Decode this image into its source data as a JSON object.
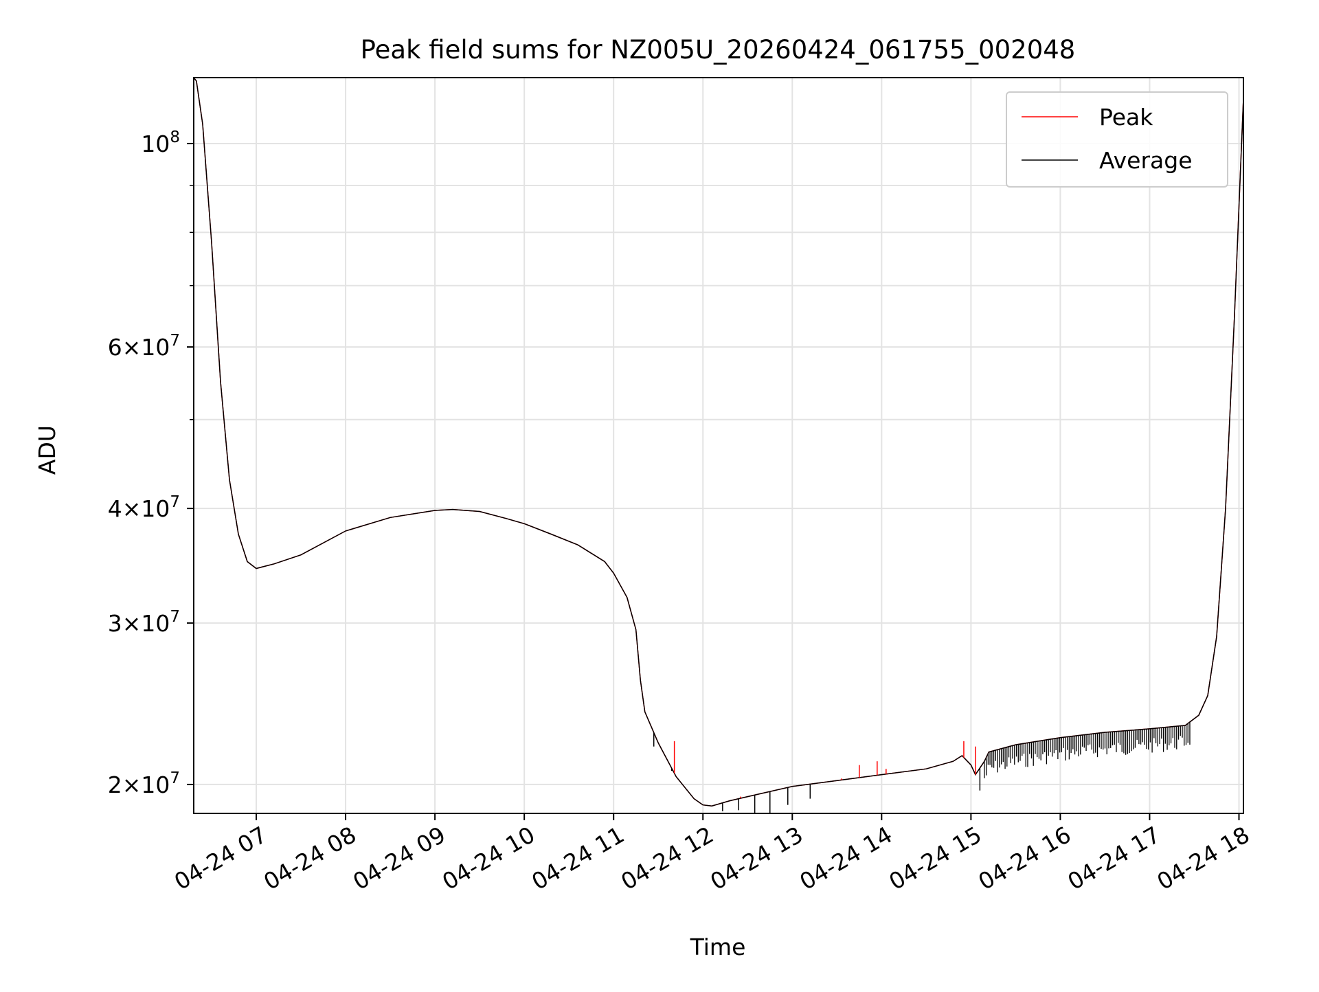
{
  "chart_data": {
    "type": "line",
    "title": "Peak field sums for NZ005U_20260424_061755_002048",
    "xlabel": "Time",
    "ylabel": "ADU",
    "yscale": "log",
    "grid": true,
    "legend_position": "top-right",
    "x_range_hours": [
      6.3,
      18.05
    ],
    "ylim": [
      18600000,
      118000000
    ],
    "x_ticks": [
      {
        "value": 7,
        "label": "04-24 07"
      },
      {
        "value": 8,
        "label": "04-24 08"
      },
      {
        "value": 9,
        "label": "04-24 09"
      },
      {
        "value": 10,
        "label": "04-24 10"
      },
      {
        "value": 11,
        "label": "04-24 11"
      },
      {
        "value": 12,
        "label": "04-24 12"
      },
      {
        "value": 13,
        "label": "04-24 13"
      },
      {
        "value": 14,
        "label": "04-24 14"
      },
      {
        "value": 15,
        "label": "04-24 15"
      },
      {
        "value": 16,
        "label": "04-24 16"
      },
      {
        "value": 17,
        "label": "04-24 17"
      },
      {
        "value": 18,
        "label": "04-24 18"
      }
    ],
    "y_ticks": [
      {
        "value": 100000000,
        "mant": "",
        "exp": "8"
      },
      {
        "value": 60000000,
        "mant": "6",
        "exp": "7"
      },
      {
        "value": 40000000,
        "mant": "4",
        "exp": "7"
      },
      {
        "value": 30000000,
        "mant": "3",
        "exp": "7"
      },
      {
        "value": 20000000,
        "mant": "2",
        "exp": "7"
      }
    ],
    "y_minor_ticks": [
      90000000,
      80000000,
      70000000,
      50000000
    ],
    "series": [
      {
        "name": "Peak",
        "color": "#ff0000",
        "x": [
          6.3,
          6.33,
          6.4,
          6.5,
          6.6,
          6.7,
          6.8,
          6.9,
          7.0,
          7.2,
          7.5,
          8.0,
          8.5,
          9.0,
          9.2,
          9.5,
          9.8,
          10.0,
          10.3,
          10.6,
          10.9,
          11.0,
          11.15,
          11.25,
          11.3,
          11.35,
          11.5,
          11.7,
          11.9,
          12.0,
          12.1,
          12.3,
          12.6,
          13.0,
          13.5,
          14.0,
          14.5,
          14.8,
          14.9,
          15.0,
          15.05,
          15.15,
          15.2,
          15.5,
          16.0,
          16.5,
          17.0,
          17.4,
          17.55,
          17.65,
          17.75,
          17.85,
          17.95,
          18.05
        ],
        "values": [
          118000000,
          117000000,
          105000000,
          78000000,
          55000000,
          43000000,
          37500000,
          35000000,
          34400000,
          34800000,
          35600000,
          37800000,
          39100000,
          39800000,
          39900000,
          39700000,
          39000000,
          38500000,
          37500000,
          36500000,
          35000000,
          34000000,
          32000000,
          29500000,
          26000000,
          24000000,
          22200000,
          20400000,
          19300000,
          19000000,
          18950000,
          19200000,
          19500000,
          19900000,
          20200000,
          20500000,
          20800000,
          21200000,
          21500000,
          21000000,
          20500000,
          21200000,
          21700000,
          22100000,
          22500000,
          22800000,
          23000000,
          23200000,
          23800000,
          25000000,
          29000000,
          40000000,
          65000000,
          112000000
        ]
      },
      {
        "name": "Average",
        "color": "#000000",
        "x": [
          6.3,
          6.33,
          6.4,
          6.5,
          6.6,
          6.7,
          6.8,
          6.9,
          7.0,
          7.2,
          7.5,
          8.0,
          8.5,
          9.0,
          9.2,
          9.5,
          9.8,
          10.0,
          10.3,
          10.6,
          10.9,
          11.0,
          11.15,
          11.25,
          11.3,
          11.35,
          11.5,
          11.7,
          11.9,
          12.0,
          12.1,
          12.3,
          12.6,
          13.0,
          13.5,
          14.0,
          14.5,
          14.8,
          14.9,
          15.0,
          15.05,
          15.15,
          15.2,
          15.5,
          16.0,
          16.5,
          17.0,
          17.4,
          17.55,
          17.65,
          17.75,
          17.85,
          17.95,
          18.05
        ],
        "values": [
          118000000,
          117000000,
          105000000,
          78000000,
          55000000,
          43000000,
          37500000,
          35000000,
          34400000,
          34800000,
          35600000,
          37800000,
          39100000,
          39800000,
          39900000,
          39700000,
          39000000,
          38500000,
          37500000,
          36500000,
          35000000,
          34000000,
          32000000,
          29500000,
          26000000,
          24000000,
          22200000,
          20400000,
          19300000,
          19000000,
          18950000,
          19200000,
          19500000,
          19900000,
          20200000,
          20500000,
          20800000,
          21200000,
          21500000,
          21000000,
          20500000,
          21200000,
          21700000,
          22100000,
          22500000,
          22800000,
          23000000,
          23200000,
          23800000,
          25000000,
          29000000,
          40000000,
          65000000,
          112000000
        ]
      }
    ],
    "peak_spikes": [
      {
        "x": 11.68,
        "value": 22300000
      },
      {
        "x": 12.42,
        "value": 19400000
      },
      {
        "x": 12.9,
        "value": 19800000
      },
      {
        "x": 13.55,
        "value": 20300000
      },
      {
        "x": 13.75,
        "value": 21000000
      },
      {
        "x": 13.95,
        "value": 21200000
      },
      {
        "x": 14.05,
        "value": 20800000
      },
      {
        "x": 14.92,
        "value": 22300000
      },
      {
        "x": 15.05,
        "value": 22000000
      }
    ],
    "average_dips": [
      {
        "x": 11.45,
        "value": 22000000
      },
      {
        "x": 11.65,
        "value": 20700000
      },
      {
        "x": 12.22,
        "value": 18700000
      },
      {
        "x": 12.4,
        "value": 18750000
      },
      {
        "x": 12.58,
        "value": 18100000
      },
      {
        "x": 12.75,
        "value": 18600000
      },
      {
        "x": 12.95,
        "value": 19000000
      },
      {
        "x": 13.2,
        "value": 19300000
      },
      {
        "x": 15.1,
        "value": 19700000
      }
    ],
    "noise_band": {
      "x_start": 15.15,
      "x_end": 17.45,
      "depth_fraction": 0.06
    }
  }
}
